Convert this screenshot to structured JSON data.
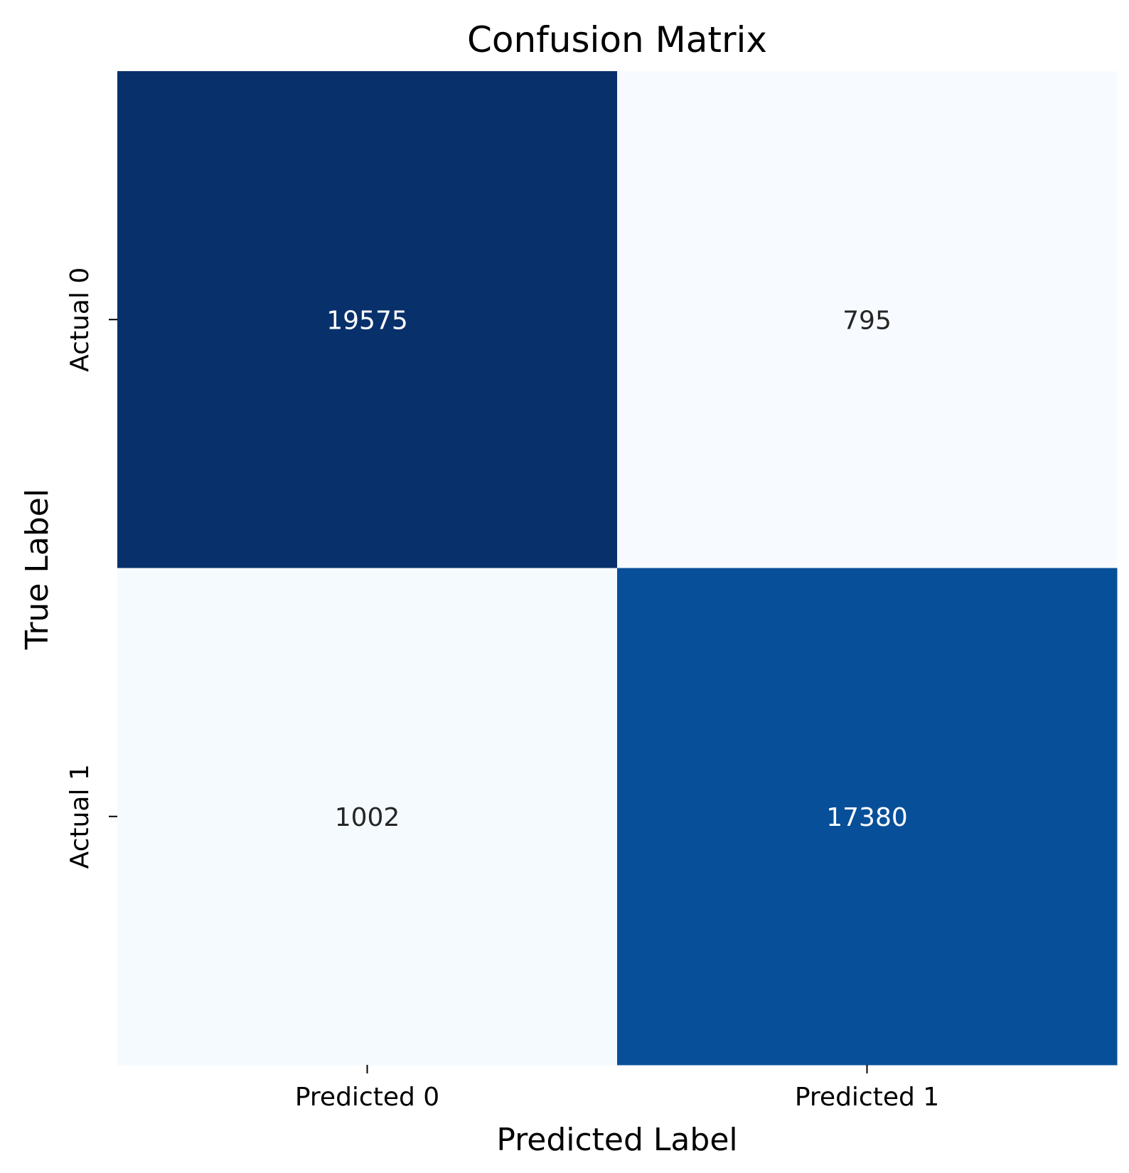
{
  "chart_data": {
    "type": "heatmap",
    "title": "Confusion Matrix",
    "xlabel": "Predicted Label",
    "ylabel": "True Label",
    "x_categories": [
      "Predicted 0",
      "Predicted 1"
    ],
    "y_categories": [
      "Actual 0",
      "Actual 1"
    ],
    "values": [
      [
        19575,
        795
      ],
      [
        1002,
        17380
      ]
    ],
    "colormap": "Blues",
    "colors": {
      "cell_high": "#08306b",
      "cell_mid_high": "#0b4f9c",
      "cell_low": "#f7fbff",
      "text_on_dark": "#ffffff",
      "text_on_light": "#262626"
    },
    "grid": false,
    "colorbar": false
  }
}
